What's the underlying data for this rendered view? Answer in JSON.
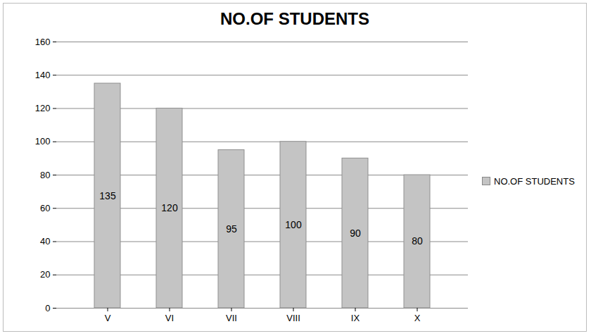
{
  "chart_data": {
    "type": "bar",
    "title": "NO.OF STUDENTS",
    "categories": [
      "V",
      "VI",
      "VII",
      "VIII",
      "IX",
      "X"
    ],
    "series": [
      {
        "name": "NO.OF STUDENTS",
        "color": "#c4c4c4",
        "values": [
          135,
          120,
          95,
          100,
          90,
          80
        ]
      }
    ],
    "ylim": [
      0,
      160
    ],
    "yticks": [
      0,
      20,
      40,
      60,
      80,
      100,
      120,
      140,
      160
    ],
    "grid": true,
    "data_labels": true,
    "legend": "right"
  }
}
